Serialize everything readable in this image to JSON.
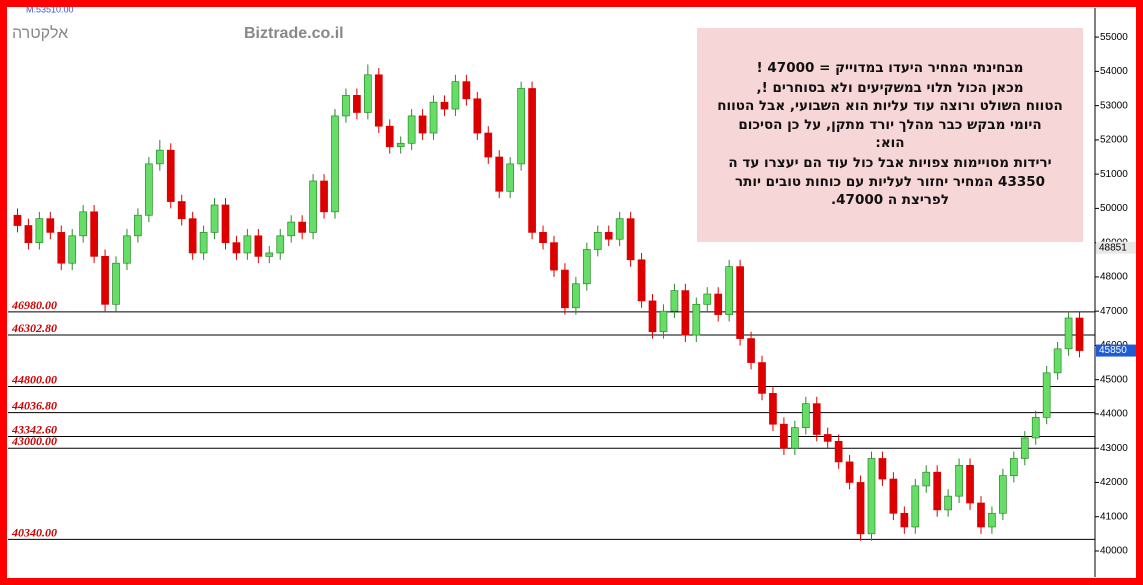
{
  "chart_data": {
    "type": "candlestick",
    "title": "אלקטרה",
    "watermark": "Biztrade.co.il",
    "corner_label": "M.53510.00",
    "up_color": "#66dd66",
    "down_color": "#dd0000",
    "level_color": "#cc0000",
    "ylim": [
      39240,
      55850
    ],
    "yticks": [
      40000,
      41000,
      42000,
      43000,
      44000,
      45000,
      46000,
      47000,
      48000,
      49000,
      50000,
      51000,
      52000,
      53000,
      54000,
      55000
    ],
    "open": [
      49800,
      49500,
      49000,
      49700,
      49300,
      48400,
      49200,
      49900,
      48600,
      47200,
      48400,
      49200,
      49800,
      51300,
      51700,
      50200,
      49700,
      48700,
      49300,
      50100,
      49000,
      48700,
      49200,
      48600,
      48700,
      49200,
      49600,
      49300,
      50800,
      49900,
      52700,
      53300,
      52800,
      53900,
      52400,
      51800,
      51900,
      52700,
      52200,
      53100,
      52900,
      53700,
      53200,
      52200,
      51500,
      50500,
      51300,
      53500,
      49300,
      49000,
      48200,
      47100,
      47800,
      48800,
      49300,
      49100,
      49700,
      48500,
      47300,
      46400,
      47000,
      47600,
      46300,
      47200,
      47500,
      46900,
      48300,
      46200,
      45500,
      44600,
      43700,
      43000,
      43600,
      44300,
      43400,
      43200,
      42600,
      42000,
      40500,
      42700,
      42100,
      41100,
      40700,
      41900,
      42300,
      41200,
      41600,
      42500,
      41400,
      40700,
      41100,
      42200,
      42700,
      43300,
      43900,
      45200,
      45900,
      46800
    ],
    "high": [
      50000,
      49700,
      49900,
      49900,
      49500,
      49400,
      50100,
      50100,
      48800,
      48600,
      49400,
      50000,
      51500,
      52000,
      51900,
      50400,
      49900,
      49500,
      50300,
      50300,
      49200,
      49400,
      49400,
      48900,
      49400,
      49800,
      49800,
      51000,
      51000,
      52900,
      53500,
      53500,
      54200,
      54100,
      52600,
      52100,
      52900,
      52900,
      53300,
      53300,
      53900,
      53900,
      53400,
      52400,
      51700,
      51500,
      53700,
      53700,
      49500,
      49200,
      48400,
      48000,
      49000,
      49500,
      49500,
      49900,
      49900,
      48700,
      47500,
      47200,
      47800,
      47800,
      47400,
      47700,
      47700,
      48500,
      48500,
      46400,
      45700,
      44800,
      43900,
      43800,
      44500,
      44500,
      43600,
      43400,
      42800,
      42200,
      42900,
      42900,
      42300,
      41300,
      42100,
      42500,
      42500,
      41800,
      42700,
      42700,
      41600,
      41300,
      42400,
      42900,
      43500,
      44100,
      45400,
      46100,
      47000,
      47000
    ],
    "low": [
      49300,
      48800,
      48800,
      49100,
      48200,
      48200,
      49000,
      48400,
      47000,
      47000,
      48200,
      49000,
      49600,
      51100,
      50000,
      49500,
      48500,
      48500,
      49100,
      48800,
      48500,
      48500,
      48400,
      48400,
      48500,
      49000,
      49100,
      49100,
      49700,
      49700,
      52500,
      52600,
      52600,
      52200,
      51600,
      51600,
      51700,
      52000,
      52000,
      52700,
      52700,
      53000,
      52000,
      51300,
      50300,
      50300,
      51100,
      49100,
      48800,
      48000,
      46900,
      46900,
      47600,
      48600,
      48900,
      48900,
      48300,
      47100,
      46200,
      46200,
      46800,
      46100,
      46100,
      47000,
      46700,
      46700,
      46000,
      45300,
      44400,
      43500,
      42800,
      42800,
      43400,
      43200,
      43000,
      42400,
      41800,
      40300,
      40300,
      41900,
      40900,
      40500,
      40500,
      41700,
      41000,
      41000,
      41400,
      41200,
      40500,
      40500,
      40900,
      42000,
      42500,
      43100,
      43700,
      45000,
      45700,
      45650
    ],
    "close": [
      49500,
      49000,
      49700,
      49300,
      48400,
      49200,
      49900,
      48600,
      47200,
      48400,
      49200,
      49800,
      51300,
      51700,
      50200,
      49700,
      48700,
      49300,
      50100,
      49000,
      48700,
      49200,
      48600,
      48700,
      49200,
      49600,
      49300,
      50800,
      49900,
      52700,
      53300,
      52800,
      53900,
      52400,
      51800,
      51900,
      52700,
      52200,
      53100,
      52900,
      53700,
      53200,
      52200,
      51500,
      50500,
      51300,
      53500,
      49300,
      49000,
      48200,
      47100,
      47800,
      48800,
      49300,
      49100,
      49700,
      48500,
      47300,
      46400,
      47000,
      47600,
      46300,
      47200,
      47500,
      46900,
      48300,
      46200,
      45500,
      44600,
      43700,
      43000,
      43600,
      44300,
      43400,
      43200,
      42600,
      42000,
      40500,
      42700,
      42100,
      41100,
      40700,
      41900,
      42300,
      41200,
      41600,
      42500,
      41400,
      40700,
      41100,
      42200,
      42700,
      43300,
      43900,
      45200,
      45900,
      46800,
      45850
    ],
    "levels": [
      {
        "value": 46980,
        "label": "46980.00"
      },
      {
        "value": 46302.8,
        "label": "46302.80"
      },
      {
        "value": 44800,
        "label": "44800.00"
      },
      {
        "value": 44036.8,
        "label": "44036.80"
      },
      {
        "value": 43342.6,
        "label": "43342.60"
      },
      {
        "value": 43000,
        "label": "43000.00"
      },
      {
        "value": 40340,
        "label": "40340.00"
      }
    ],
    "markers": [
      {
        "value": 48851,
        "color": "#e8e8e8"
      },
      {
        "value": 45850,
        "color": "#1e5bd6"
      }
    ],
    "note": [
      "מבחינתי  המחיר  היעדו  במדוייק = 47000 !",
      "מכאן  הכול  תלוי  במשקיעים  ולא  בסוחרים !,",
      "הטווח  השולט ורוצה עוד  עליות הוא  השבועי, אבל הטווח",
      "היומי  מבקש כבר  מהלך  יורד מתקן, על  כן  הסיכום",
      "הוא:",
      "ירידות  מסויימות צפויות  אבל כול עוד  הם  יעצרו  עד  ה",
      "43350  המחיר  יחזור  לעליות עם   כוחות טובים יותר",
      "לפריצת  ה 47000."
    ]
  }
}
